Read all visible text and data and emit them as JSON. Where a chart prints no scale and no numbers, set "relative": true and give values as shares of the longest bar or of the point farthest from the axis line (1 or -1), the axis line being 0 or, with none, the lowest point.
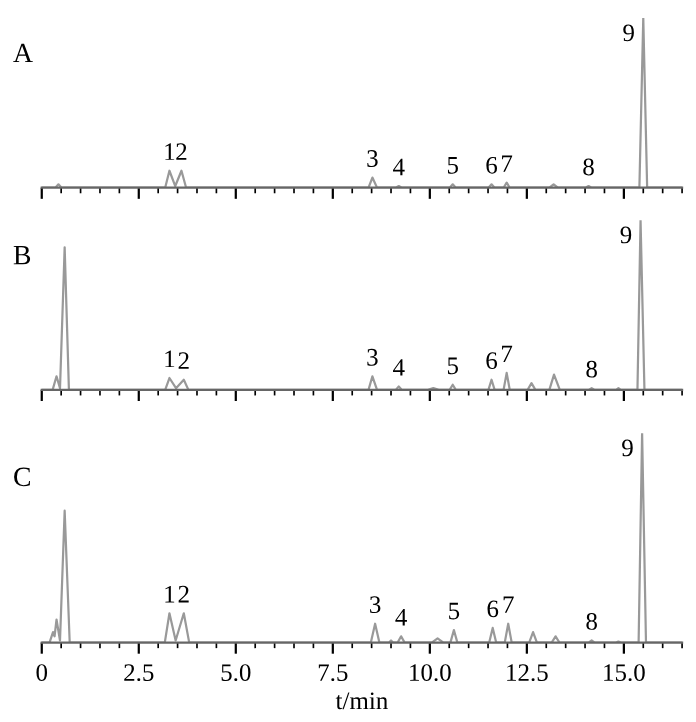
{
  "chart_data": [
    {
      "type": "line",
      "title": "A",
      "relative": true,
      "tick_labels": false,
      "grid": false,
      "legend": false,
      "xlim": [
        0,
        16.5
      ],
      "xticks": [
        0,
        {
          "value": 0.5,
          "label": null
        },
        {
          "value": 1,
          "label": null
        },
        {
          "value": 1.5,
          "label": null
        },
        {
          "value": 2,
          "label": null
        },
        2.5,
        {
          "value": 3,
          "label": null
        },
        {
          "value": 3.5,
          "label": null
        },
        {
          "value": 4,
          "label": null
        },
        {
          "value": 4.5,
          "label": null
        },
        5,
        {
          "value": 5.5,
          "label": null
        },
        {
          "value": 6,
          "label": null
        },
        {
          "value": 6.5,
          "label": null
        },
        {
          "value": 7,
          "label": null
        },
        7.5,
        {
          "value": 8,
          "label": null
        },
        {
          "value": 8.5,
          "label": null
        },
        {
          "value": 9,
          "label": null
        },
        {
          "value": 9.5,
          "label": null
        },
        10,
        {
          "value": 10.5,
          "label": null
        },
        {
          "value": 11,
          "label": null
        },
        {
          "value": 11.5,
          "label": null
        },
        {
          "value": 12,
          "label": null
        },
        12.5,
        {
          "value": 13,
          "label": null
        },
        {
          "value": 13.5,
          "label": null
        },
        {
          "value": 14,
          "label": null
        },
        {
          "value": 14.5,
          "label": null
        },
        15,
        {
          "value": 15.5,
          "label": null
        },
        {
          "value": 16,
          "label": null
        },
        {
          "value": 16.5,
          "label": null
        }
      ],
      "series": [
        {
          "color": "#999999",
          "x": [
            0,
            0.35,
            0.43,
            0.51,
            3.18,
            3.29,
            3.44,
            3.6,
            3.72,
            8.42,
            8.52,
            8.64,
            9.12,
            9.2,
            9.28,
            10.51,
            10.59,
            10.67,
            11.51,
            11.59,
            11.67,
            11.9,
            11.98,
            12.06,
            13.08,
            13.19,
            13.3,
            14.01,
            14.09,
            14.17,
            15.4,
            15.5,
            15.6,
            16.5
          ],
          "values": [
            0,
            0,
            0.02,
            0,
            0,
            0.1,
            0.01,
            0.1,
            0,
            0,
            0.06,
            0,
            0,
            0.01,
            0,
            0,
            0.02,
            0,
            0,
            0.02,
            0,
            0,
            0.03,
            0,
            0,
            0.02,
            0,
            0,
            0.01,
            0,
            0,
            1,
            0,
            0
          ]
        }
      ],
      "annotations": [
        {
          "text": "1",
          "x": 3.29,
          "y": 0.1
        },
        {
          "text": "2",
          "x": 3.6,
          "y": 0.1
        },
        {
          "text": "3",
          "x": 8.52,
          "y": 0.06
        },
        {
          "text": "4",
          "x": 9.2,
          "y": 0.01
        },
        {
          "text": "5",
          "x": 10.59,
          "y": 0.02
        },
        {
          "text": "6",
          "x": 11.59,
          "y": 0.02
        },
        {
          "text": "7",
          "x": 11.98,
          "y": 0.03
        },
        {
          "text": "8",
          "x": 14.09,
          "y": 0.01
        },
        {
          "text": "9",
          "x": 15.5,
          "y": 1
        }
      ]
    },
    {
      "type": "line",
      "title": "B",
      "relative": true,
      "tick_labels": false,
      "grid": false,
      "legend": false,
      "xlim": [
        0,
        16.5
      ],
      "xticks": [
        0,
        {
          "value": 0.5,
          "label": null
        },
        {
          "value": 1,
          "label": null
        },
        {
          "value": 1.5,
          "label": null
        },
        {
          "value": 2,
          "label": null
        },
        2.5,
        {
          "value": 3,
          "label": null
        },
        {
          "value": 3.5,
          "label": null
        },
        {
          "value": 4,
          "label": null
        },
        {
          "value": 4.5,
          "label": null
        },
        5,
        {
          "value": 5.5,
          "label": null
        },
        {
          "value": 6,
          "label": null
        },
        {
          "value": 6.5,
          "label": null
        },
        {
          "value": 7,
          "label": null
        },
        7.5,
        {
          "value": 8,
          "label": null
        },
        {
          "value": 8.5,
          "label": null
        },
        {
          "value": 9,
          "label": null
        },
        {
          "value": 9.5,
          "label": null
        },
        10,
        {
          "value": 10.5,
          "label": null
        },
        {
          "value": 11,
          "label": null
        },
        {
          "value": 11.5,
          "label": null
        },
        {
          "value": 12,
          "label": null
        },
        12.5,
        {
          "value": 13,
          "label": null
        },
        {
          "value": 13.5,
          "label": null
        },
        {
          "value": 14,
          "label": null
        },
        {
          "value": 14.5,
          "label": null
        },
        15,
        {
          "value": 15.5,
          "label": null
        },
        {
          "value": 16,
          "label": null
        },
        {
          "value": 16.5,
          "label": null
        }
      ],
      "series": [
        {
          "color": "#999999",
          "x": [
            0,
            0.28,
            0.38,
            0.47,
            0.59,
            0.7,
            3.18,
            3.29,
            3.46,
            3.66,
            3.78,
            8.42,
            8.52,
            8.64,
            9.12,
            9.2,
            9.28,
            9.95,
            10.09,
            10.23,
            10.51,
            10.59,
            10.67,
            11.51,
            11.59,
            11.67,
            11.9,
            11.98,
            12.06,
            12.52,
            12.62,
            12.72,
            13.08,
            13.2,
            13.35,
            14.09,
            14.17,
            14.25,
            14.8,
            14.86,
            14.92,
            15.35,
            15.43,
            15.53,
            16.5
          ],
          "values": [
            0,
            0,
            0.08,
            0.01,
            0.84,
            0,
            0,
            0.07,
            0.01,
            0.06,
            0,
            0,
            0.08,
            0,
            0,
            0.02,
            0,
            0,
            0.01,
            0,
            0,
            0.03,
            0,
            0,
            0.06,
            0,
            0,
            0.1,
            0,
            0,
            0.04,
            0,
            0,
            0.09,
            0,
            0,
            0.01,
            0,
            0,
            0.01,
            0,
            0,
            1,
            0,
            0
          ]
        }
      ],
      "annotations": [
        {
          "text": "1",
          "x": 3.29,
          "y": 0.07
        },
        {
          "text": "2",
          "x": 3.66,
          "y": 0.06
        },
        {
          "text": "3",
          "x": 8.52,
          "y": 0.08
        },
        {
          "text": "4",
          "x": 9.2,
          "y": 0.02
        },
        {
          "text": "5",
          "x": 10.59,
          "y": 0.03
        },
        {
          "text": "6",
          "x": 11.59,
          "y": 0.06
        },
        {
          "text": "7",
          "x": 11.98,
          "y": 0.1
        },
        {
          "text": "8",
          "x": 14.17,
          "y": 0.01
        },
        {
          "text": "9",
          "x": 15.43,
          "y": 1
        }
      ]
    },
    {
      "type": "line",
      "title": "C",
      "relative": true,
      "tick_labels": "x",
      "grid": false,
      "legend": false,
      "xlabel": "t/min",
      "xlim": [
        0,
        16.5
      ],
      "xticks": [
        0,
        {
          "value": 0.5,
          "label": null
        },
        {
          "value": 1,
          "label": null
        },
        {
          "value": 1.5,
          "label": null
        },
        {
          "value": 2,
          "label": null
        },
        2.5,
        {
          "value": 3,
          "label": null
        },
        {
          "value": 3.5,
          "label": null
        },
        {
          "value": 4,
          "label": null
        },
        {
          "value": 4.5,
          "label": null
        },
        {
          "value": 5,
          "label": "5.0"
        },
        {
          "value": 5.5,
          "label": null
        },
        {
          "value": 6,
          "label": null
        },
        {
          "value": 6.5,
          "label": null
        },
        {
          "value": 7,
          "label": null
        },
        7.5,
        {
          "value": 8,
          "label": null
        },
        {
          "value": 8.5,
          "label": null
        },
        {
          "value": 9,
          "label": null
        },
        {
          "value": 9.5,
          "label": null
        },
        {
          "value": 10,
          "label": "10.0"
        },
        {
          "value": 10.5,
          "label": null
        },
        {
          "value": 11,
          "label": null
        },
        {
          "value": 11.5,
          "label": null
        },
        {
          "value": 12,
          "label": null
        },
        12.5,
        {
          "value": 13,
          "label": null
        },
        {
          "value": 13.5,
          "label": null
        },
        {
          "value": 14,
          "label": null
        },
        {
          "value": 14.5,
          "label": null
        },
        {
          "value": 15,
          "label": "15.0"
        },
        {
          "value": 15.5,
          "label": null
        },
        {
          "value": 16,
          "label": null
        },
        {
          "value": 16.5,
          "label": null
        }
      ],
      "series": [
        {
          "color": "#999999",
          "x": [
            0,
            0.2,
            0.29,
            0.33,
            0.38,
            0.47,
            0.59,
            0.72,
            3.17,
            3.29,
            3.45,
            3.66,
            3.8,
            8.48,
            8.59,
            8.7,
            8.95,
            9.0,
            9.05,
            9.17,
            9.26,
            9.35,
            10.05,
            10.2,
            10.35,
            10.53,
            10.62,
            10.71,
            11.53,
            11.62,
            11.71,
            11.93,
            12.02,
            12.11,
            12.56,
            12.66,
            12.76,
            13.14,
            13.24,
            13.34,
            14.09,
            14.17,
            14.25,
            14.8,
            14.86,
            14.92,
            15.38,
            15.47,
            15.57,
            16.5
          ],
          "values": [
            0,
            0,
            0.05,
            0.03,
            0.11,
            0.01,
            0.63,
            0,
            0,
            0.14,
            0.01,
            0.14,
            0,
            0,
            0.09,
            0,
            0,
            0.01,
            0,
            0,
            0.03,
            0,
            0,
            0.02,
            0,
            0,
            0.06,
            0,
            0,
            0.07,
            0,
            0,
            0.09,
            0,
            0,
            0.05,
            0,
            0,
            0.03,
            0,
            0,
            0.01,
            0,
            0,
            0.005,
            0,
            0,
            1,
            0,
            0
          ]
        }
      ],
      "annotations": [
        {
          "text": "1",
          "x": 3.29,
          "y": 0.14
        },
        {
          "text": "2",
          "x": 3.66,
          "y": 0.14
        },
        {
          "text": "3",
          "x": 8.59,
          "y": 0.09
        },
        {
          "text": "4",
          "x": 9.26,
          "y": 0.03
        },
        {
          "text": "5",
          "x": 10.62,
          "y": 0.06
        },
        {
          "text": "6",
          "x": 11.62,
          "y": 0.07
        },
        {
          "text": "7",
          "x": 12.02,
          "y": 0.09
        },
        {
          "text": "8",
          "x": 14.17,
          "y": 0.01
        },
        {
          "text": "9",
          "x": 15.47,
          "y": 1
        }
      ]
    }
  ]
}
